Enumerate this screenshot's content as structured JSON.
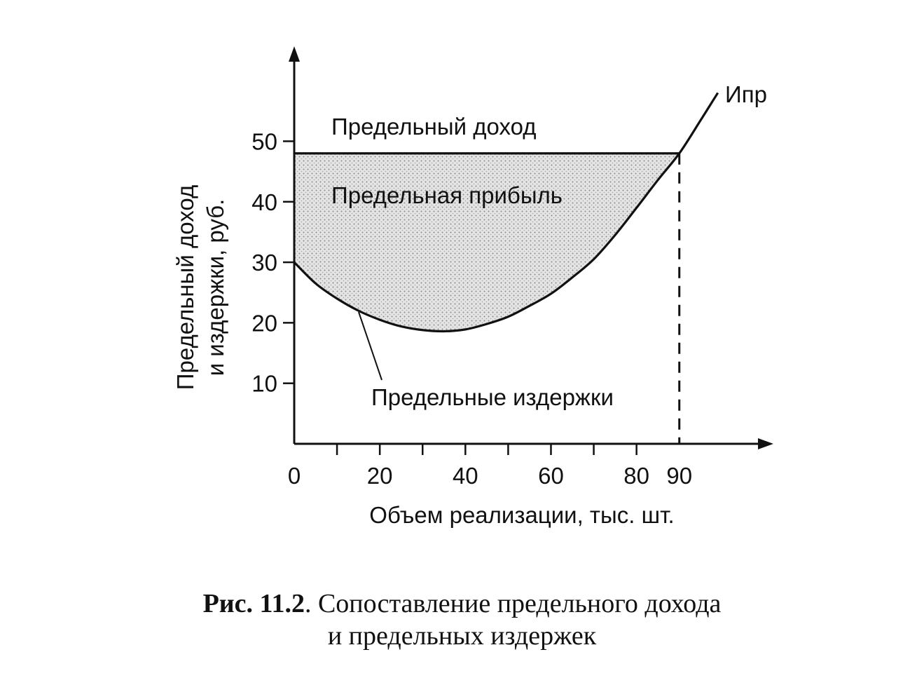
{
  "chart_data": {
    "type": "line",
    "title": "",
    "xlabel": "Объем реализации, тыс. шт.",
    "ylabel_line1": "Предельный доход",
    "ylabel_line2": "и издержки, руб.",
    "x_ticks": [
      "0",
      "20",
      "40",
      "60",
      "80",
      "90"
    ],
    "x_tick_values": [
      0,
      20,
      40,
      60,
      80,
      90
    ],
    "x_minor_ticks": [
      0,
      10,
      20,
      30,
      40,
      50,
      60,
      70,
      80
    ],
    "y_ticks": [
      "10",
      "20",
      "30",
      "40",
      "50"
    ],
    "y_tick_values": [
      10,
      20,
      30,
      40,
      50
    ],
    "xlim": [
      0,
      111
    ],
    "ylim": [
      0,
      65
    ],
    "grid": false,
    "series": [
      {
        "name": "Предельный доход",
        "color": "#111111",
        "x": [
          0,
          90
        ],
        "y": [
          48,
          48
        ]
      },
      {
        "name": "Предельные издержки",
        "color": "#111111",
        "x": [
          0,
          5,
          10,
          15,
          20,
          25,
          30,
          35,
          40,
          45,
          50,
          55,
          60,
          65,
          70,
          75,
          80,
          85,
          90,
          95,
          99
        ],
        "y": [
          30,
          26.5,
          24,
          22,
          20.5,
          19.4,
          18.8,
          18.6,
          18.9,
          19.8,
          21,
          22.8,
          24.8,
          27.5,
          30.5,
          34.5,
          39,
          43.6,
          48,
          53.5,
          58
        ]
      }
    ],
    "shaded_region_label": "Предельная прибыль",
    "curve_end_label": "Ипр",
    "vertical_marker_x": 90,
    "annotations": {
      "revenue": "Предельный доход",
      "profit": "Предельная прибыль",
      "costs": "Предельные издержки"
    }
  },
  "caption": {
    "number": "Рис. 11.2",
    "line1": ". Сопоставление предельного дохода",
    "line2": "и предельных издержек"
  },
  "colors": {
    "ink": "#111111",
    "shade": "#c9c9c9"
  }
}
